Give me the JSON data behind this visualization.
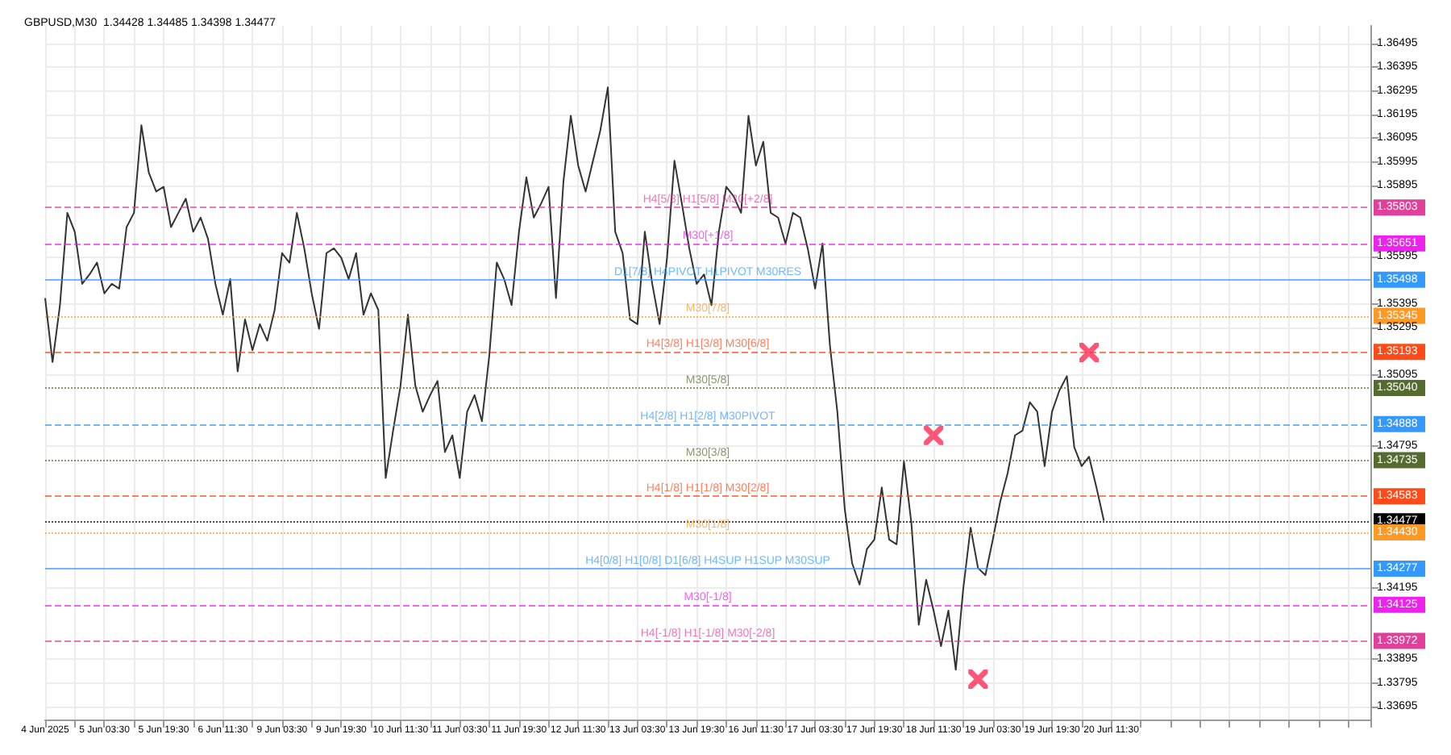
{
  "chart_data": {
    "type": "line",
    "title": "GBPUSD,M30  1.34428 1.34485 1.34398 1.34477",
    "categories": [
      "4 Jun 2025",
      null,
      null,
      null,
      null,
      null,
      null,
      null,
      "5 Jun 03:30",
      null,
      null,
      null,
      null,
      null,
      null,
      null,
      "5 Jun 19:30",
      null,
      null,
      null,
      null,
      null,
      null,
      null,
      "6 Jun 11:30",
      null,
      null,
      null,
      null,
      null,
      null,
      null,
      "9 Jun 03:30",
      null,
      null,
      null,
      null,
      null,
      null,
      null,
      "9 Jun 19:30",
      null,
      null,
      null,
      null,
      null,
      null,
      null,
      "10 Jun 11:30",
      null,
      null,
      null,
      null,
      null,
      null,
      null,
      "11 Jun 03:30",
      null,
      null,
      null,
      null,
      null,
      null,
      null,
      "11 Jun 19:30",
      null,
      null,
      null,
      null,
      null,
      null,
      null,
      "12 Jun 11:30",
      null,
      null,
      null,
      null,
      null,
      null,
      null,
      "13 Jun 03:30",
      null,
      null,
      null,
      null,
      null,
      null,
      null,
      "13 Jun 19:30",
      null,
      null,
      null,
      null,
      null,
      null,
      null,
      "16 Jun 11:30",
      null,
      null,
      null,
      null,
      null,
      null,
      null,
      "17 Jun 03:30",
      null,
      null,
      null,
      null,
      null,
      null,
      null,
      "17 Jun 19:30",
      null,
      null,
      null,
      null,
      null,
      null,
      null,
      "18 Jun 11:30",
      null,
      null,
      null,
      null,
      null,
      null,
      null,
      "19 Jun 03:30",
      null,
      null,
      null,
      null,
      null,
      null,
      null,
      "19 Jun 19:30",
      null,
      null,
      null,
      null,
      null,
      null,
      null,
      "20 Jun 11:30",
      null,
      null,
      null,
      null,
      null,
      null,
      null,
      null,
      null,
      null,
      null,
      null,
      null,
      null,
      null,
      null,
      null,
      null,
      null,
      null,
      null,
      null,
      null,
      null,
      null,
      null,
      null,
      null,
      null,
      null,
      null,
      null,
      null,
      null,
      null
    ],
    "ylim": [
      1.3364,
      1.3657
    ],
    "yticks": [
      1.33695,
      1.33795,
      1.33895,
      1.34195,
      1.34795,
      1.35095,
      1.35295,
      1.35395,
      1.35595,
      1.35895,
      1.35995,
      1.36095,
      1.36195,
      1.36295,
      1.36395,
      1.36495
    ],
    "grid": true,
    "marker": "none",
    "line_style": "solid",
    "series": [
      {
        "type": "line",
        "color": "#333333",
        "values": [
          1.3542,
          1.3515,
          1.3539,
          1.3578,
          1.357,
          1.3548,
          1.3552,
          1.3557,
          1.3544,
          1.3548,
          1.3546,
          1.3572,
          1.3578,
          1.3615,
          1.3595,
          1.3587,
          1.3589,
          1.3572,
          1.3578,
          1.3584,
          1.357,
          1.3576,
          1.3567,
          1.3548,
          1.3535,
          1.355,
          1.3511,
          1.3533,
          1.352,
          1.3531,
          1.3524,
          1.3537,
          1.3561,
          1.3557,
          1.3578,
          1.3563,
          1.3544,
          1.3529,
          1.3561,
          1.3563,
          1.3559,
          1.355,
          1.3561,
          1.3535,
          1.3544,
          1.3537,
          1.3466,
          1.3486,
          1.3505,
          1.3535,
          1.3505,
          1.3494,
          1.3501,
          1.3507,
          1.3477,
          1.3484,
          1.3466,
          1.3494,
          1.3501,
          1.349,
          1.3518,
          1.3557,
          1.355,
          1.3539,
          1.357,
          1.3593,
          1.3576,
          1.3582,
          1.3589,
          1.3542,
          1.3591,
          1.3619,
          1.3598,
          1.3587,
          1.36,
          1.3613,
          1.3631,
          1.357,
          1.3561,
          1.3533,
          1.3531,
          1.357,
          1.3548,
          1.3531,
          1.3559,
          1.36,
          1.3582,
          1.3563,
          1.3548,
          1.3552,
          1.3539,
          1.357,
          1.3589,
          1.3585,
          1.3578,
          1.3619,
          1.3598,
          1.3608,
          1.3578,
          1.3576,
          1.3565,
          1.3578,
          1.3576,
          1.3563,
          1.3546,
          1.3565,
          1.3522,
          1.3494,
          1.3453,
          1.343,
          1.3421,
          1.3436,
          1.344,
          1.3462,
          1.344,
          1.3438,
          1.3473,
          1.3447,
          1.3404,
          1.3423,
          1.341,
          1.3395,
          1.341,
          1.3385,
          1.3419,
          1.3445,
          1.3428,
          1.3425,
          1.344,
          1.3456,
          1.3468,
          1.3484,
          1.3486,
          1.3498,
          1.3494,
          1.3471,
          1.3494,
          1.3503,
          1.3509,
          1.3479,
          1.3471,
          1.3475,
          1.3462,
          1.3448,
          null,
          null,
          null,
          null,
          null,
          null,
          null,
          null,
          null,
          null,
          null,
          null,
          null,
          null,
          null,
          null,
          null,
          null,
          null,
          null,
          null,
          null,
          null,
          null,
          null,
          null,
          null,
          null,
          null,
          null,
          null,
          null,
          null,
          null,
          null,
          null
        ]
      },
      {
        "type": "scatter",
        "marker": "cross",
        "color": "#ff2a55",
        "values": [
          null,
          null,
          null,
          null,
          null,
          null,
          null,
          null,
          null,
          null,
          null,
          null,
          null,
          null,
          null,
          null,
          null,
          null,
          null,
          null,
          null,
          null,
          null,
          null,
          null,
          null,
          null,
          null,
          null,
          null,
          null,
          null,
          null,
          null,
          null,
          null,
          null,
          null,
          null,
          null,
          null,
          null,
          null,
          null,
          null,
          null,
          null,
          null,
          null,
          null,
          null,
          null,
          null,
          null,
          null,
          null,
          null,
          null,
          null,
          null,
          null,
          null,
          null,
          null,
          null,
          null,
          null,
          null,
          null,
          null,
          null,
          null,
          null,
          null,
          null,
          null,
          null,
          null,
          null,
          null,
          null,
          null,
          null,
          null,
          null,
          null,
          null,
          null,
          null,
          null,
          null,
          null,
          null,
          null,
          null,
          null,
          null,
          null,
          null,
          null,
          null,
          null,
          null,
          null,
          null,
          null,
          null,
          null,
          null,
          null,
          null,
          null,
          null,
          null,
          null,
          null,
          null,
          null,
          null,
          null,
          1.3484,
          null,
          null,
          null,
          null,
          null,
          1.3381,
          null,
          null,
          null,
          null,
          null,
          null,
          null,
          null,
          null,
          null,
          null,
          null,
          null,
          null,
          1.3519,
          null,
          null,
          null,
          null,
          null,
          null,
          null,
          null,
          null,
          null,
          null,
          null,
          null,
          null,
          null,
          null,
          null,
          null,
          null,
          null,
          null,
          null,
          null,
          null,
          null,
          null,
          null,
          null,
          null,
          null,
          null,
          null,
          null,
          null,
          null,
          null,
          null,
          null
        ]
      }
    ],
    "ref_lines": [
      {
        "axis": "y",
        "value": 1.35803,
        "label": "H4[5/8] H1[5/8] M30[+2/8]",
        "color": "#e0409a",
        "line_style": "dashed"
      },
      {
        "axis": "y",
        "value": 1.35651,
        "label": "M30[+1/8]",
        "color": "#ee22ee",
        "line_style": "dashed"
      },
      {
        "axis": "y",
        "value": 1.35498,
        "label": "D1[7/8] H4PIVOT H1PIVOT M30RES",
        "color": "#3399ff",
        "line_style": "solid"
      },
      {
        "axis": "y",
        "value": 1.35345,
        "label": "M30[7/8]",
        "color": "#ff9922",
        "line_style": "dotted"
      },
      {
        "axis": "y",
        "value": 1.35193,
        "label": "H4[3/8] H1[3/8] M30[6/8]",
        "color": "#ff4a1a",
        "line_style": "dashed"
      },
      {
        "axis": "y",
        "value": 1.3504,
        "label": "M30[5/8]",
        "color": "#556b2f",
        "line_style": "dotted"
      },
      {
        "axis": "y",
        "value": 1.34888,
        "label": "H4[2/8] H1[2/8] M30PIVOT",
        "color": "#3399ff",
        "line_style": "dashed"
      },
      {
        "axis": "y",
        "value": 1.34735,
        "label": "M30[3/8]",
        "color": "#556b2f",
        "line_style": "dotted"
      },
      {
        "axis": "y",
        "value": 1.34583,
        "label": "H4[1/8] H1[1/8] M30[2/8]",
        "color": "#ff4a1a",
        "line_style": "dashed"
      },
      {
        "axis": "y",
        "value": 1.34477,
        "label": null,
        "color": "#000000",
        "line_style": "dotted"
      },
      {
        "axis": "y",
        "value": 1.3443,
        "label": "M30[1/8]",
        "color": "#ff9922",
        "line_style": "dotted"
      },
      {
        "axis": "y",
        "value": 1.34277,
        "label": "H4[0/8] H1[0/8] D1[6/8] H4SUP H1SUP M30SUP",
        "color": "#3399ff",
        "line_style": "solid"
      },
      {
        "axis": "y",
        "value": 1.34125,
        "label": "M30[-1/8]",
        "color": "#ee22ee",
        "line_style": "dashed"
      },
      {
        "axis": "y",
        "value": 1.33972,
        "label": "H4[-1/8] H1[-1/8] M30[-2/8]",
        "color": "#e0409a",
        "line_style": "dashed"
      }
    ],
    "annotations": [
      {
        "text": "1.35803",
        "y": 1.35803
      },
      {
        "text": "1.35651",
        "y": 1.35651
      },
      {
        "text": "1.35498",
        "y": 1.35498
      },
      {
        "text": "1.35345",
        "y": 1.35345
      },
      {
        "text": "1.35193",
        "y": 1.35193
      },
      {
        "text": "1.35040",
        "y": 1.3504
      },
      {
        "text": "1.34888",
        "y": 1.34888
      },
      {
        "text": "1.34735",
        "y": 1.34735
      },
      {
        "text": "1.34583",
        "y": 1.34583
      },
      {
        "text": "1.34477",
        "y": 1.34477
      },
      {
        "text": "1.34430",
        "y": 1.3443
      },
      {
        "text": "1.34277",
        "y": 1.34277
      },
      {
        "text": "1.34125",
        "y": 1.34125
      },
      {
        "text": "1.33972",
        "y": 1.33972
      }
    ]
  }
}
